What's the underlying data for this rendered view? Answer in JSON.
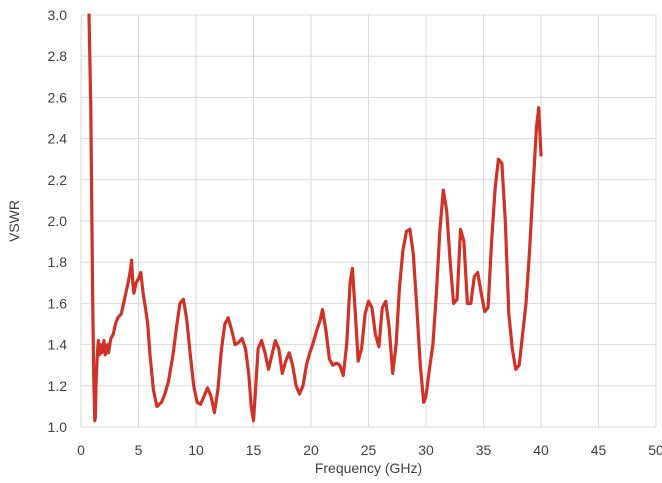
{
  "chart_data": {
    "type": "line",
    "xlabel": "Frequency (GHz)",
    "ylabel": "VSWR",
    "xlim": [
      0,
      50
    ],
    "ylim": [
      1.0,
      3.0
    ],
    "x_ticks": [
      0,
      5,
      10,
      15,
      20,
      25,
      30,
      35,
      40,
      45,
      50
    ],
    "y_ticks": [
      1.0,
      1.2,
      1.4,
      1.6,
      1.8,
      2.0,
      2.2,
      2.4,
      2.6,
      2.8,
      3.0
    ],
    "y_tick_labels": [
      "1.0",
      "1.2",
      "1.4",
      "1.6",
      "1.8",
      "2.0",
      "2.2",
      "2.4",
      "2.6",
      "2.8",
      "3.0"
    ],
    "grid": true,
    "colors": {
      "series": "#D03228",
      "grid": "#D9D9D9",
      "text": "#404040"
    },
    "series": [
      {
        "x": [
          0.7,
          0.85,
          1.0,
          1.1,
          1.2,
          1.25,
          1.3,
          1.4,
          1.5,
          1.6,
          1.7,
          1.8,
          1.9,
          2.0,
          2.1,
          2.2,
          2.3,
          2.4,
          2.5,
          2.6,
          2.8,
          3.0,
          3.2,
          3.5,
          3.7,
          3.9,
          4.1,
          4.3,
          4.4,
          4.5,
          4.6,
          4.8,
          5.0,
          5.2,
          5.4,
          5.6,
          5.8,
          6.0,
          6.3,
          6.6,
          6.8,
          7.0,
          7.3,
          7.6,
          8.0,
          8.3,
          8.6,
          8.9,
          9.2,
          9.5,
          9.8,
          10.1,
          10.4,
          10.7,
          11.0,
          11.3,
          11.6,
          11.9,
          12.2,
          12.5,
          12.8,
          13.1,
          13.4,
          13.7,
          14.0,
          14.3,
          14.6,
          14.8,
          15.0,
          15.2,
          15.4,
          15.7,
          16.0,
          16.3,
          16.6,
          16.9,
          17.2,
          17.5,
          17.8,
          18.1,
          18.4,
          18.7,
          19.0,
          19.3,
          19.6,
          19.9,
          20.2,
          20.5,
          20.8,
          21.0,
          21.3,
          21.6,
          21.9,
          22.2,
          22.5,
          22.8,
          23.1,
          23.4,
          23.6,
          23.8,
          24.1,
          24.4,
          24.7,
          25.0,
          25.3,
          25.6,
          25.9,
          26.2,
          26.5,
          26.8,
          27.1,
          27.4,
          27.7,
          28.0,
          28.3,
          28.6,
          28.9,
          29.2,
          29.5,
          29.8,
          30.0,
          30.3,
          30.6,
          30.9,
          31.2,
          31.5,
          31.8,
          32.1,
          32.4,
          32.7,
          33.0,
          33.3,
          33.6,
          33.9,
          34.2,
          34.5,
          34.8,
          35.1,
          35.4,
          35.7,
          36.0,
          36.3,
          36.6,
          36.9,
          37.2,
          37.5,
          37.8,
          38.1,
          38.4,
          38.7,
          39.0,
          39.3,
          39.6,
          39.8,
          40.0
        ],
        "y": [
          3.0,
          2.55,
          1.7,
          1.25,
          1.03,
          1.05,
          1.2,
          1.33,
          1.42,
          1.35,
          1.4,
          1.36,
          1.38,
          1.42,
          1.35,
          1.38,
          1.4,
          1.36,
          1.4,
          1.43,
          1.45,
          1.5,
          1.53,
          1.55,
          1.6,
          1.65,
          1.7,
          1.76,
          1.81,
          1.7,
          1.65,
          1.7,
          1.72,
          1.75,
          1.65,
          1.58,
          1.5,
          1.35,
          1.18,
          1.1,
          1.11,
          1.12,
          1.16,
          1.22,
          1.35,
          1.48,
          1.6,
          1.62,
          1.52,
          1.35,
          1.2,
          1.12,
          1.11,
          1.15,
          1.19,
          1.15,
          1.07,
          1.18,
          1.37,
          1.5,
          1.53,
          1.47,
          1.4,
          1.41,
          1.43,
          1.38,
          1.25,
          1.1,
          1.03,
          1.2,
          1.38,
          1.42,
          1.36,
          1.28,
          1.35,
          1.42,
          1.38,
          1.26,
          1.32,
          1.36,
          1.3,
          1.2,
          1.16,
          1.2,
          1.3,
          1.36,
          1.41,
          1.47,
          1.52,
          1.57,
          1.47,
          1.33,
          1.3,
          1.31,
          1.3,
          1.25,
          1.4,
          1.7,
          1.77,
          1.6,
          1.32,
          1.38,
          1.55,
          1.61,
          1.58,
          1.45,
          1.39,
          1.58,
          1.61,
          1.48,
          1.26,
          1.4,
          1.68,
          1.86,
          1.95,
          1.96,
          1.84,
          1.58,
          1.3,
          1.12,
          1.15,
          1.28,
          1.4,
          1.65,
          1.95,
          2.15,
          2.05,
          1.8,
          1.6,
          1.62,
          1.96,
          1.9,
          1.6,
          1.6,
          1.73,
          1.75,
          1.65,
          1.56,
          1.58,
          1.9,
          2.15,
          2.3,
          2.28,
          2.0,
          1.55,
          1.38,
          1.28,
          1.3,
          1.45,
          1.6,
          1.85,
          2.15,
          2.45,
          2.55,
          2.32
        ]
      }
    ]
  }
}
